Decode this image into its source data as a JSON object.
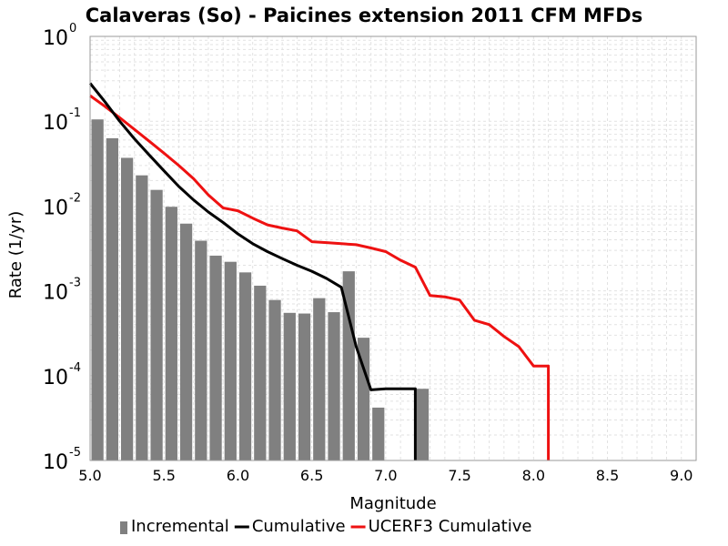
{
  "chart_data": {
    "type": "bar+line",
    "title": "Calaveras (So) - Paicines extension 2011 CFM MFDs",
    "xlabel": "Magnitude",
    "ylabel": "Rate (1/yr)",
    "xlim": [
      5.0,
      9.1
    ],
    "ylim": [
      1e-05,
      1
    ],
    "yscale": "log",
    "grid": true,
    "legend_position": "bottom",
    "x_ticks": [
      "5.0",
      "5.5",
      "6.0",
      "6.5",
      "7.0",
      "7.5",
      "8.0",
      "8.5",
      "9.0"
    ],
    "y_ticks": [
      {
        "base": "10",
        "exp": "0",
        "value": 1
      },
      {
        "base": "10",
        "exp": "-1",
        "value": 0.1
      },
      {
        "base": "10",
        "exp": "-2",
        "value": 0.01
      },
      {
        "base": "10",
        "exp": "-3",
        "value": 0.001
      },
      {
        "base": "10",
        "exp": "-4",
        "value": 0.0001
      },
      {
        "base": "10",
        "exp": "-5",
        "value": 1e-05
      }
    ],
    "series": [
      {
        "name": "Incremental",
        "kind": "bar",
        "color": "#808080",
        "bar_width": 0.1,
        "x": [
          5.05,
          5.15,
          5.25,
          5.35,
          5.45,
          5.55,
          5.65,
          5.75,
          5.85,
          5.95,
          6.05,
          6.15,
          6.25,
          6.35,
          6.45,
          6.55,
          6.65,
          6.75,
          6.85,
          6.95,
          7.05,
          7.15,
          7.25
        ],
        "y": [
          0.105,
          0.063,
          0.037,
          0.023,
          0.0155,
          0.0098,
          0.0062,
          0.0039,
          0.0026,
          0.0022,
          0.00165,
          0.00115,
          0.00078,
          0.00055,
          0.00054,
          0.00082,
          0.00056,
          0.0017,
          0.00028,
          4.2e-05,
          null,
          null,
          7e-05
        ]
      },
      {
        "name": "Cumulative",
        "kind": "line",
        "color": "#000000",
        "x": [
          5.0,
          5.1,
          5.2,
          5.3,
          5.4,
          5.5,
          5.6,
          5.7,
          5.8,
          5.9,
          6.0,
          6.1,
          6.2,
          6.3,
          6.4,
          6.5,
          6.6,
          6.7,
          6.8,
          6.9,
          7.0,
          7.1,
          7.2,
          7.2
        ],
        "y": [
          0.28,
          0.17,
          0.1,
          0.062,
          0.04,
          0.026,
          0.017,
          0.0118,
          0.0085,
          0.0064,
          0.0047,
          0.0036,
          0.0029,
          0.0024,
          0.002,
          0.0017,
          0.0014,
          0.0011,
          0.00022,
          6.8e-05,
          7e-05,
          7e-05,
          7e-05,
          1e-05
        ]
      },
      {
        "name": "UCERF3 Cumulative",
        "kind": "line",
        "color": "#ee1111",
        "x": [
          5.0,
          5.1,
          5.2,
          5.3,
          5.4,
          5.5,
          5.6,
          5.7,
          5.8,
          5.9,
          6.0,
          6.1,
          6.2,
          6.3,
          6.4,
          6.5,
          6.6,
          6.7,
          6.8,
          6.9,
          7.0,
          7.1,
          7.2,
          7.3,
          7.4,
          7.5,
          7.6,
          7.7,
          7.8,
          7.9,
          8.0,
          8.1,
          8.1
        ],
        "y": [
          0.2,
          0.15,
          0.11,
          0.08,
          0.058,
          0.042,
          0.03,
          0.021,
          0.0135,
          0.0095,
          0.0088,
          0.0072,
          0.006,
          0.0055,
          0.0051,
          0.0038,
          0.0037,
          0.0036,
          0.0035,
          0.0032,
          0.0029,
          0.0023,
          0.0019,
          0.00088,
          0.00085,
          0.00078,
          0.00045,
          0.0004,
          0.00029,
          0.00022,
          0.00013,
          0.00013,
          1e-05
        ]
      }
    ]
  }
}
